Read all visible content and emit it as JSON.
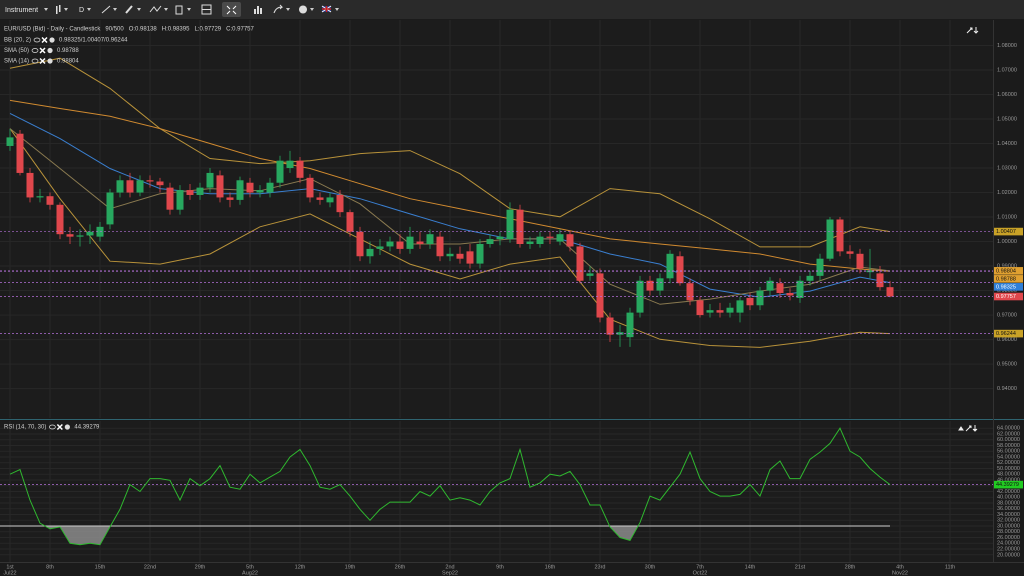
{
  "toolbar": {
    "instrument": "Instrument",
    "timeframe": "D"
  },
  "chart_data": [
    {
      "type": "candlestick",
      "title": "EUR/USD (Bid) - Daily - Candlestick",
      "subtitle": "90/500",
      "ohlc_labels": [
        "O:0.98138",
        "H:0.98395",
        "L:0.97729",
        "C:0.97757"
      ],
      "legend": [
        {
          "name": "BB (20, 2)",
          "value": "0.98325/1.00407/0.96244"
        },
        {
          "name": "SMA (50)",
          "value": "0.98788"
        },
        {
          "name": "SMA (14)",
          "value": "0.98804"
        }
      ],
      "up_color": "#27a85f",
      "down_color": "#e0474c",
      "open": [
        1.039,
        1.044,
        1.028,
        1.018,
        1.0185,
        1.015,
        1.003,
        1.002,
        1.0025,
        1.002,
        1.007,
        1.02,
        1.025,
        1.02,
        1.025,
        1.0245,
        1.022,
        1.013,
        1.021,
        1.019,
        1.022,
        1.027,
        1.018,
        1.017,
        1.024,
        1.02,
        1.02,
        1.024,
        1.03,
        1.033,
        1.026,
        1.018,
        1.016,
        1.019,
        1.012,
        1.004,
        0.994,
        0.997,
        0.998,
        1.0,
        0.997,
        1.0,
        0.999,
        1.002,
        0.994,
        0.995,
        0.996,
        0.991,
        0.999,
        1.001,
        1.001,
        1.013,
        0.999,
        0.999,
        1.002,
        1.0,
        1.003,
        0.998,
        0.986,
        0.987,
        0.969,
        0.962,
        0.961,
        0.971,
        0.984,
        0.98,
        0.985,
        0.994,
        0.983,
        0.976,
        0.971,
        0.972,
        0.971,
        0.971,
        0.977,
        0.974,
        0.98,
        0.983,
        0.979,
        0.977,
        0.984,
        0.986,
        0.993,
        1.009,
        0.996,
        0.995,
        0.9875,
        0.987,
        0.98138
      ],
      "high": [
        1.046,
        1.0455,
        1.03,
        1.0215,
        1.02,
        1.016,
        1.006,
        1.005,
        1.007,
        1.008,
        1.0215,
        1.027,
        1.028,
        1.027,
        1.027,
        1.026,
        1.024,
        1.023,
        1.0235,
        1.024,
        1.03,
        1.029,
        1.02,
        1.0265,
        1.026,
        1.023,
        1.026,
        1.035,
        1.037,
        1.0345,
        1.0275,
        1.02,
        1.02,
        1.021,
        1.013,
        1.006,
        1.0,
        1.001,
        1.002,
        1.003,
        1.006,
        1.004,
        1.005,
        1.004,
        0.9975,
        0.998,
        0.999,
        1.001,
        1.003,
        1.004,
        1.016,
        1.015,
        1.002,
        1.004,
        1.004,
        1.005,
        1.0045,
        0.9995,
        0.99,
        0.989,
        0.971,
        0.966,
        0.973,
        0.986,
        0.986,
        0.987,
        0.9965,
        0.996,
        0.985,
        0.9775,
        0.9745,
        0.975,
        0.975,
        0.9775,
        0.979,
        0.9815,
        0.9855,
        0.985,
        0.981,
        0.986,
        0.988,
        0.995,
        1.01,
        1.01,
        0.9985,
        0.997,
        0.997,
        0.99,
        0.98395
      ],
      "low": [
        1.037,
        1.027,
        1.016,
        1.016,
        1.013,
        1.001,
        0.999,
        0.998,
        0.999,
        1.0,
        1.005,
        1.018,
        1.018,
        1.0185,
        1.022,
        1.02,
        1.011,
        1.011,
        1.017,
        1.017,
        1.02,
        1.016,
        1.014,
        1.015,
        1.018,
        1.018,
        1.018,
        1.022,
        1.028,
        1.024,
        1.016,
        1.015,
        1.014,
        1.01,
        1.002,
        0.992,
        0.991,
        0.9945,
        0.996,
        0.995,
        0.995,
        0.997,
        0.997,
        0.992,
        0.992,
        0.991,
        0.989,
        0.989,
        0.9975,
        0.9985,
        0.9995,
        0.9975,
        0.997,
        0.9975,
        0.999,
        0.9985,
        0.996,
        0.983,
        0.984,
        0.967,
        0.959,
        0.957,
        0.957,
        0.969,
        0.978,
        0.978,
        0.983,
        0.982,
        0.974,
        0.969,
        0.969,
        0.969,
        0.969,
        0.967,
        0.972,
        0.972,
        0.978,
        0.977,
        0.976,
        0.975,
        0.982,
        0.984,
        0.992,
        0.994,
        0.993,
        0.987,
        0.985,
        0.98,
        0.97729
      ],
      "close": [
        1.0425,
        1.028,
        1.018,
        1.0185,
        1.015,
        1.003,
        1.002,
        1.0025,
        1.004,
        1.006,
        1.02,
        1.025,
        1.02,
        1.025,
        1.0245,
        1.023,
        1.013,
        1.021,
        1.019,
        1.022,
        1.028,
        1.018,
        1.017,
        1.025,
        1.02,
        1.021,
        1.024,
        1.033,
        1.033,
        1.026,
        1.018,
        1.017,
        1.018,
        1.012,
        1.004,
        0.994,
        0.997,
        0.998,
        1.0,
        0.997,
        1.002,
        0.999,
        1.003,
        0.994,
        0.995,
        0.993,
        0.991,
        0.999,
        1.001,
        1.002,
        1.013,
        0.999,
        1.0,
        1.002,
        1.0015,
        1.003,
        0.998,
        0.984,
        0.987,
        0.969,
        0.962,
        0.963,
        0.971,
        0.984,
        0.98,
        0.985,
        0.995,
        0.983,
        0.976,
        0.97,
        0.972,
        0.971,
        0.973,
        0.976,
        0.974,
        0.98,
        0.984,
        0.979,
        0.978,
        0.984,
        0.986,
        0.993,
        1.009,
        0.996,
        0.995,
        0.989,
        0.9882,
        0.9814,
        0.97757
      ],
      "lines": [
        {
          "color": "#b8923a",
          "x": [
            0,
            5,
            10,
            15,
            20,
            25,
            30,
            35,
            40,
            45,
            50,
            55,
            60,
            65,
            70,
            75,
            80,
            85,
            88
          ],
          "values": [
            1.0707,
            1.0748,
            1.0625,
            1.0461,
            1.0339,
            1.0318,
            1.033,
            1.0359,
            1.0371,
            1.0277,
            1.0134,
            1.0101,
            1.0216,
            1.0195,
            1.0093,
            0.9978,
            0.9978,
            1.006,
            1.00407
          ]
        },
        {
          "color": "#3a7fd0",
          "x": [
            0,
            5,
            10,
            15,
            20,
            25,
            30,
            35,
            40,
            45,
            50,
            55,
            60,
            65,
            70,
            75,
            80,
            85,
            88
          ],
          "values": [
            1.0523,
            1.042,
            1.0298,
            1.0216,
            1.0195,
            1.0195,
            1.0216,
            1.0175,
            1.0113,
            1.0052,
            1.0011,
            1.0011,
            0.9949,
            0.9908,
            0.9806,
            0.9773,
            0.9798,
            0.9855,
            0.98325
          ]
        },
        {
          "color": "#b8923a",
          "x": [
            0,
            5,
            10,
            15,
            20,
            25,
            30,
            35,
            40,
            45,
            50,
            55,
            60,
            65,
            70,
            75,
            80,
            85,
            88
          ],
          "values": [
            1.0461,
            1.0175,
            0.992,
            0.9908,
            0.9949,
            1.006,
            1.0113,
            1.0011,
            0.9908,
            0.9847,
            0.9908,
            0.9937,
            0.9683,
            0.9601,
            0.9576,
            0.9568,
            0.9593,
            0.963,
            0.96244
          ]
        },
        {
          "color": "#d08a30",
          "x": [
            0,
            5,
            10,
            15,
            20,
            25,
            30,
            35,
            40,
            45,
            50,
            55,
            60,
            65,
            70,
            75,
            80,
            85,
            88
          ],
          "values": [
            1.0576,
            1.0543,
            1.0511,
            1.0461,
            1.04,
            1.0339,
            1.0298,
            1.0236,
            1.0175,
            1.0134,
            1.0093,
            1.0052,
            1.0011,
            0.999,
            0.997,
            0.9949,
            0.9908,
            0.9888,
            0.98788
          ]
        },
        {
          "color": "#8a7a50",
          "x": [
            0,
            5,
            10,
            15,
            20,
            25,
            30,
            35,
            40,
            45,
            50,
            55,
            60,
            65,
            70,
            75,
            80,
            85,
            88
          ],
          "values": [
            1.0461,
            1.0298,
            1.0134,
            1.0195,
            1.0216,
            1.0207,
            1.0257,
            1.0154,
            0.999,
            0.999,
            1.0011,
            1.0011,
            0.9826,
            0.9744,
            0.9765,
            0.9798,
            0.9826,
            0.9896,
            0.98804
          ]
        }
      ],
      "levels": [
        {
          "value": 1.00407,
          "color": "#c9a227"
        },
        {
          "value": 0.98804,
          "color": "#e0a030"
        },
        {
          "value": 0.98788,
          "color": "#e0a030"
        },
        {
          "value": 0.98325,
          "color": "#2f7fd8"
        },
        {
          "value": 0.97757,
          "color": "#e0474c"
        },
        {
          "value": 0.96244,
          "color": "#c9a227"
        }
      ],
      "xlim": [
        -1,
        98.3
      ],
      "xticks": [
        {
          "value": 0,
          "label": "1st"
        },
        {
          "value": 4,
          "label": "8th"
        },
        {
          "value": 9,
          "label": "15th"
        },
        {
          "value": 14,
          "label": "22nd"
        },
        {
          "value": 19,
          "label": "29th"
        },
        {
          "value": 24,
          "label": "5th"
        },
        {
          "value": 29,
          "label": "12th"
        },
        {
          "value": 34,
          "label": "19th"
        },
        {
          "value": 39,
          "label": "26th"
        },
        {
          "value": 44,
          "label": "2nd"
        },
        {
          "value": 49,
          "label": "9th"
        },
        {
          "value": 54,
          "label": "16th"
        },
        {
          "value": 59,
          "label": "23rd"
        },
        {
          "value": 64,
          "label": "30th"
        },
        {
          "value": 69,
          "label": "7th"
        },
        {
          "value": 74,
          "label": "14th"
        },
        {
          "value": 79,
          "label": "21st"
        },
        {
          "value": 84,
          "label": "28th"
        },
        {
          "value": 89,
          "label": "4th"
        },
        {
          "value": 94,
          "label": "11th"
        }
      ],
      "xticks_month": [
        {
          "value": 0,
          "label": "Jul22"
        },
        {
          "value": 24,
          "label": "Aug22"
        },
        {
          "value": 44,
          "label": "Sep22"
        },
        {
          "value": 69,
          "label": "Oct22"
        },
        {
          "value": 89,
          "label": "Nov22"
        }
      ],
      "ylim": [
        0.928,
        1.0904
      ],
      "yticks": [
        {
          "value": 0.94,
          "label": "0.94000"
        },
        {
          "value": 0.95,
          "label": "0.95000"
        },
        {
          "value": 0.96,
          "label": "0.96000"
        },
        {
          "value": 0.97,
          "label": "0.97000"
        },
        {
          "value": 0.98,
          "label": "0.98000"
        },
        {
          "value": 0.99,
          "label": "0.99000"
        },
        {
          "value": 1.0,
          "label": "1.00000"
        },
        {
          "value": 1.01,
          "label": "1.01000"
        },
        {
          "value": 1.02,
          "label": "1.02000"
        },
        {
          "value": 1.03,
          "label": "1.03000"
        },
        {
          "value": 1.04,
          "label": "1.04000"
        },
        {
          "value": 1.05,
          "label": "1.05000"
        },
        {
          "value": 1.06,
          "label": "1.06000"
        },
        {
          "value": 1.07,
          "label": "1.07000"
        },
        {
          "value": 1.08,
          "label": "1.08000"
        },
        {
          "value": 1.09,
          "label": "1.09000"
        }
      ],
      "grid": true
    },
    {
      "type": "line",
      "title": "RSI (14, 70, 30)",
      "value": 44.39279,
      "color": "#2fb82f",
      "value_color": "#22cc22",
      "level": 30,
      "values": [
        48,
        49.6,
        39,
        31,
        29,
        29.7,
        24,
        23.5,
        24,
        23.5,
        29.7,
        35.8,
        44.4,
        42,
        46.5,
        46.5,
        45.9,
        39,
        46.5,
        44,
        46.5,
        51,
        43.5,
        42.8,
        48,
        45,
        47,
        49,
        54,
        56.6,
        51,
        43.5,
        42.8,
        44.4,
        40.4,
        35.8,
        32,
        35.8,
        38.3,
        38.3,
        38.3,
        42,
        40.4,
        44,
        39,
        39.8,
        39,
        37.3,
        42,
        45,
        46.5,
        56.6,
        43.5,
        45,
        48,
        47.4,
        49,
        44.4,
        37.3,
        37.3,
        29.7,
        26,
        25,
        31.2,
        40.4,
        39,
        43.5,
        48,
        55.7,
        46.5,
        42,
        40.4,
        40.4,
        41,
        44.4,
        40.4,
        49.6,
        52.6,
        46.5,
        46.5,
        53.2,
        55.7,
        58.7,
        64,
        56,
        54,
        50,
        47,
        44.39279
      ],
      "ylim": [
        17.5,
        66.5
      ],
      "yticks": [
        {
          "value": 18,
          "label": "18.00000"
        },
        {
          "value": 20,
          "label": "20.00000"
        },
        {
          "value": 22,
          "label": "22.00000"
        },
        {
          "value": 24,
          "label": "24.00000"
        },
        {
          "value": 26,
          "label": "26.00000"
        },
        {
          "value": 28,
          "label": "28.00000"
        },
        {
          "value": 30,
          "label": "30.00000"
        },
        {
          "value": 32,
          "label": "32.00000"
        },
        {
          "value": 34,
          "label": "34.00000"
        },
        {
          "value": 36,
          "label": "36.00000"
        },
        {
          "value": 38,
          "label": "38.00000"
        },
        {
          "value": 40,
          "label": "40.00000"
        },
        {
          "value": 42,
          "label": "42.00000"
        },
        {
          "value": 44,
          "label": "44.00000"
        },
        {
          "value": 46,
          "label": "46.00000"
        },
        {
          "value": 48,
          "label": "48.00000"
        },
        {
          "value": 50,
          "label": "50.00000"
        },
        {
          "value": 52,
          "label": "52.00000"
        },
        {
          "value": 54,
          "label": "54.00000"
        },
        {
          "value": 56,
          "label": "56.00000"
        },
        {
          "value": 58,
          "label": "58.00000"
        },
        {
          "value": 60,
          "label": "60.00000"
        },
        {
          "value": 62,
          "label": "62.00000"
        },
        {
          "value": 64,
          "label": "64.00000"
        },
        {
          "value": 66,
          "label": "66.00000"
        }
      ],
      "grid": true
    }
  ]
}
